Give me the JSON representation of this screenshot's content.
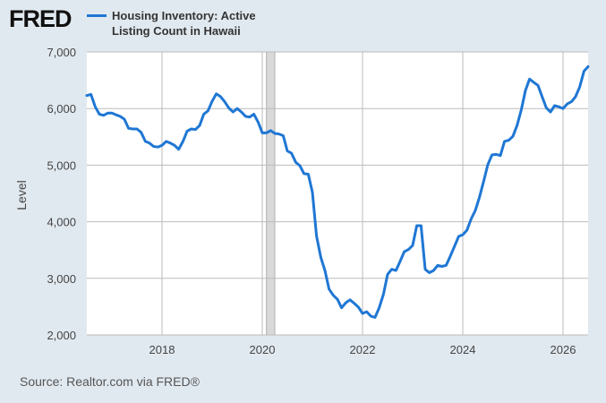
{
  "header": {
    "logo": "FRED",
    "series_title": "Housing Inventory: Active Listing Count in Hawaii"
  },
  "source": "Source: Realtor.com via FRED®",
  "colors": {
    "line": "#1f77d4",
    "plot_bg": "#ffffff",
    "page_bg": "#e1e9f0",
    "recession": "#d9d9d9"
  },
  "chart_data": {
    "type": "line",
    "ylabel": "Level",
    "ylim": [
      2000,
      7000
    ],
    "xlim": [
      2016.5,
      2026.5
    ],
    "y_ticks": [
      "2,000",
      "3,000",
      "4,000",
      "5,000",
      "6,000",
      "7,000"
    ],
    "y_tick_values": [
      2000,
      3000,
      4000,
      5000,
      6000,
      7000
    ],
    "x_ticks": [
      "2018",
      "2020",
      "2022",
      "2024",
      "2026"
    ],
    "x_tick_values": [
      2018,
      2020,
      2022,
      2024,
      2026
    ],
    "grid": true,
    "recession_shading": [
      [
        2020.083,
        2020.25
      ]
    ],
    "series": [
      {
        "x": [
          2016.5,
          2016.583,
          2016.667,
          2016.75,
          2016.833,
          2016.917,
          2017.0,
          2017.083,
          2017.167,
          2017.25,
          2017.333,
          2017.417,
          2017.5,
          2017.583,
          2017.667,
          2017.75,
          2017.833,
          2017.917,
          2018.0,
          2018.083,
          2018.167,
          2018.25,
          2018.333,
          2018.417,
          2018.5,
          2018.583,
          2018.667,
          2018.75,
          2018.833,
          2018.917,
          2019.0,
          2019.083,
          2019.167,
          2019.25,
          2019.333,
          2019.417,
          2019.5,
          2019.583,
          2019.667,
          2019.75,
          2019.833,
          2019.917,
          2020.0,
          2020.083,
          2020.167,
          2020.25,
          2020.333,
          2020.417,
          2020.5,
          2020.583,
          2020.667,
          2020.75,
          2020.833,
          2020.917,
          2021.0,
          2021.083,
          2021.167,
          2021.25,
          2021.333,
          2021.417,
          2021.5,
          2021.583,
          2021.667,
          2021.75,
          2021.833,
          2021.917,
          2022.0,
          2022.083,
          2022.167,
          2022.25,
          2022.333,
          2022.417,
          2022.5,
          2022.583,
          2022.667,
          2022.75,
          2022.833,
          2022.917,
          2023.0,
          2023.083,
          2023.167,
          2023.25,
          2023.333,
          2023.417,
          2023.5,
          2023.583,
          2023.667,
          2023.75,
          2023.833,
          2023.917,
          2024.0,
          2024.083,
          2024.167,
          2024.25,
          2024.333,
          2024.417,
          2024.5,
          2024.583,
          2024.667,
          2024.75,
          2024.833,
          2024.917,
          2025.0,
          2025.083,
          2025.167,
          2025.25,
          2025.333,
          2025.417,
          2025.5,
          2025.583,
          2025.667,
          2025.75,
          2025.833,
          2025.917,
          2026.0,
          2026.083,
          2026.167,
          2026.25,
          2026.333,
          2026.417,
          2026.5
        ],
        "values": [
          6230,
          6250,
          6030,
          5900,
          5880,
          5920,
          5920,
          5890,
          5860,
          5810,
          5650,
          5640,
          5640,
          5580,
          5420,
          5390,
          5330,
          5320,
          5350,
          5420,
          5390,
          5350,
          5280,
          5420,
          5600,
          5640,
          5630,
          5700,
          5900,
          5960,
          6130,
          6260,
          6210,
          6120,
          6010,
          5940,
          6000,
          5940,
          5860,
          5850,
          5900,
          5760,
          5570,
          5570,
          5610,
          5560,
          5550,
          5520,
          5250,
          5210,
          5050,
          4990,
          4850,
          4840,
          4520,
          3750,
          3370,
          3140,
          2810,
          2700,
          2630,
          2480,
          2570,
          2620,
          2560,
          2490,
          2380,
          2410,
          2330,
          2310,
          2480,
          2720,
          3070,
          3160,
          3140,
          3300,
          3470,
          3510,
          3580,
          3930,
          3930,
          3160,
          3100,
          3140,
          3230,
          3210,
          3230,
          3390,
          3560,
          3740,
          3770,
          3850,
          4050,
          4200,
          4430,
          4720,
          5010,
          5180,
          5190,
          5170,
          5420,
          5440,
          5510,
          5700,
          5980,
          6320,
          6520,
          6460,
          6410,
          6210,
          6010,
          5940,
          6050,
          6030,
          6000,
          6080,
          6120,
          6210,
          6380,
          6660,
          6740
        ]
      }
    ]
  }
}
